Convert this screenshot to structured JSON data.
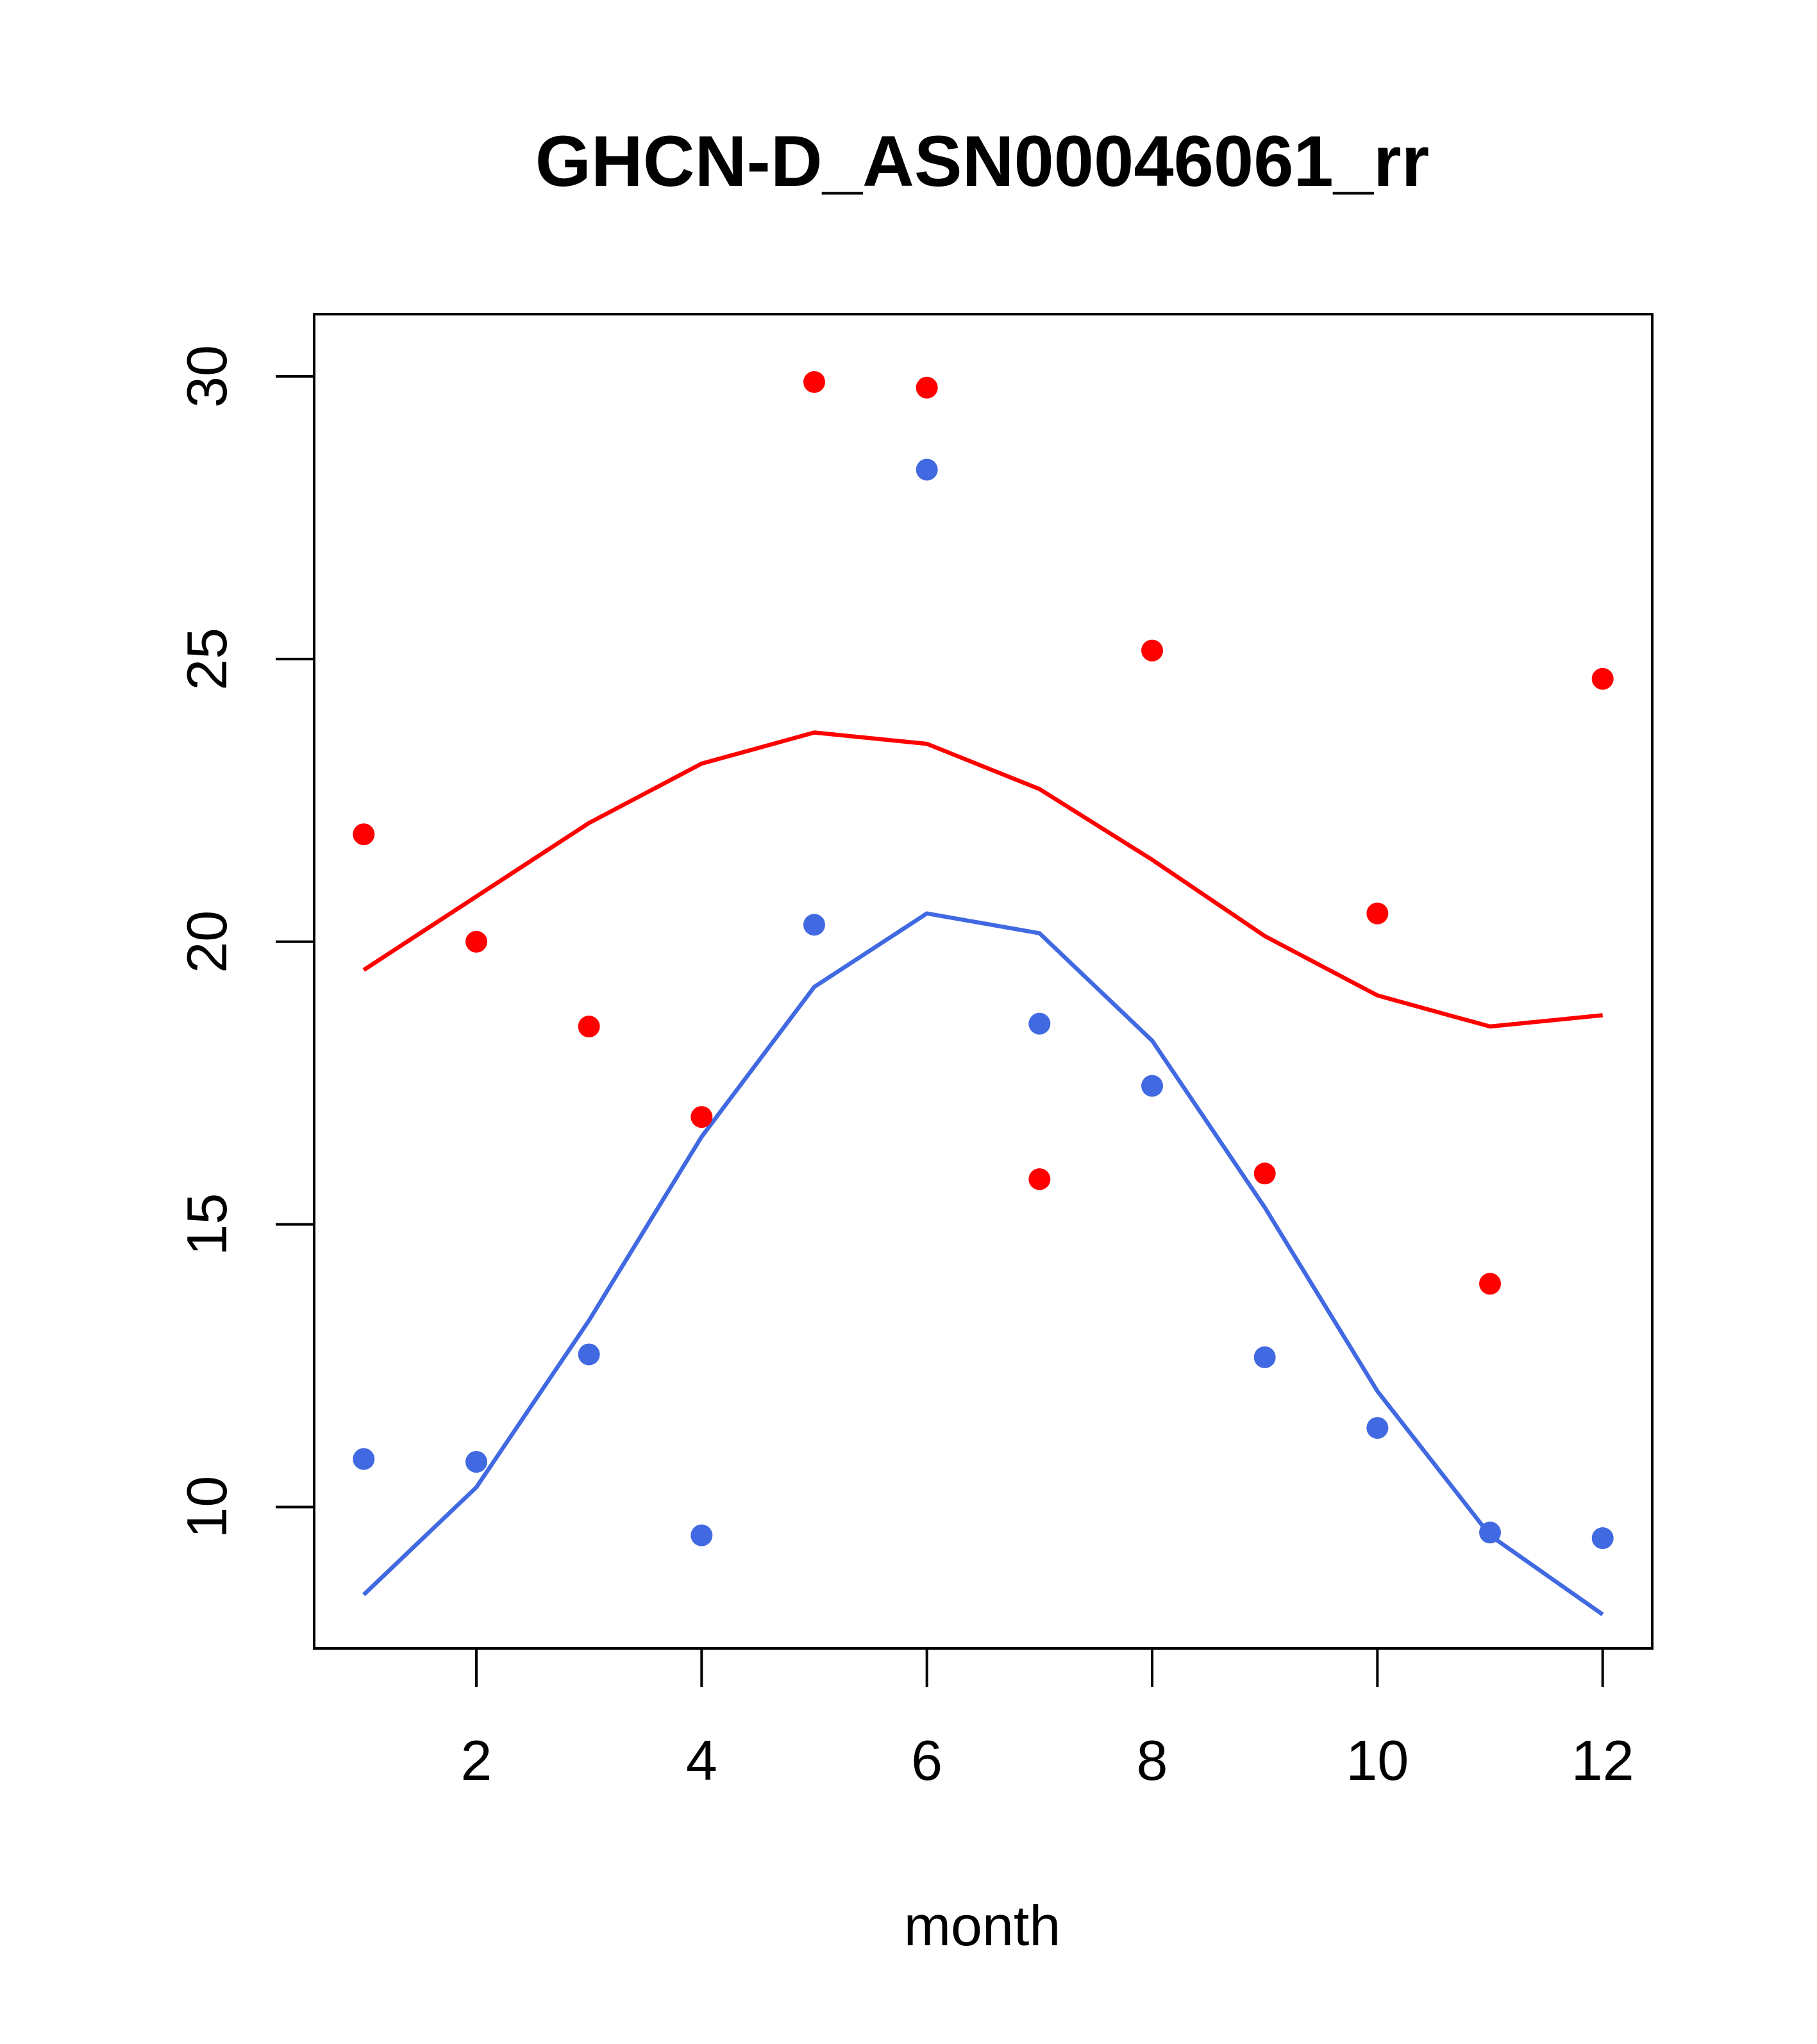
{
  "chart_data": {
    "type": "line",
    "title": "GHCN-D_ASN00046061_rr",
    "xlabel": "month",
    "ylabel": "",
    "xlim": [
      0.56,
      12.44
    ],
    "ylim": [
      7.5,
      31.1
    ],
    "xticks": [
      2,
      4,
      6,
      8,
      10,
      12
    ],
    "yticks": [
      10,
      15,
      20,
      25,
      30
    ],
    "x": [
      1,
      2,
      3,
      4,
      5,
      6,
      7,
      8,
      9,
      10,
      11,
      12
    ],
    "series": [
      {
        "name": "red-smooth",
        "kind": "line",
        "color": "#ff0000",
        "values": [
          19.5,
          20.8,
          22.1,
          23.15,
          23.7,
          23.5,
          22.7,
          21.45,
          20.1,
          19.05,
          18.5,
          18.7
        ]
      },
      {
        "name": "blue-smooth",
        "kind": "line",
        "color": "#4169e1",
        "values": [
          8.45,
          10.35,
          13.3,
          16.55,
          19.2,
          20.5,
          20.15,
          18.25,
          15.3,
          12.05,
          9.5,
          8.1
        ]
      },
      {
        "name": "red-points",
        "kind": "points",
        "color": "#ff0000",
        "values": [
          21.9,
          20.0,
          18.5,
          16.9,
          29.9,
          29.8,
          15.8,
          25.15,
          15.9,
          20.5,
          13.95,
          24.65
        ]
      },
      {
        "name": "blue-points",
        "kind": "points",
        "color": "#4169e1",
        "values": [
          10.85,
          10.8,
          12.7,
          9.5,
          20.3,
          28.35,
          18.55,
          17.45,
          12.65,
          11.4,
          9.55,
          9.45
        ]
      }
    ]
  }
}
